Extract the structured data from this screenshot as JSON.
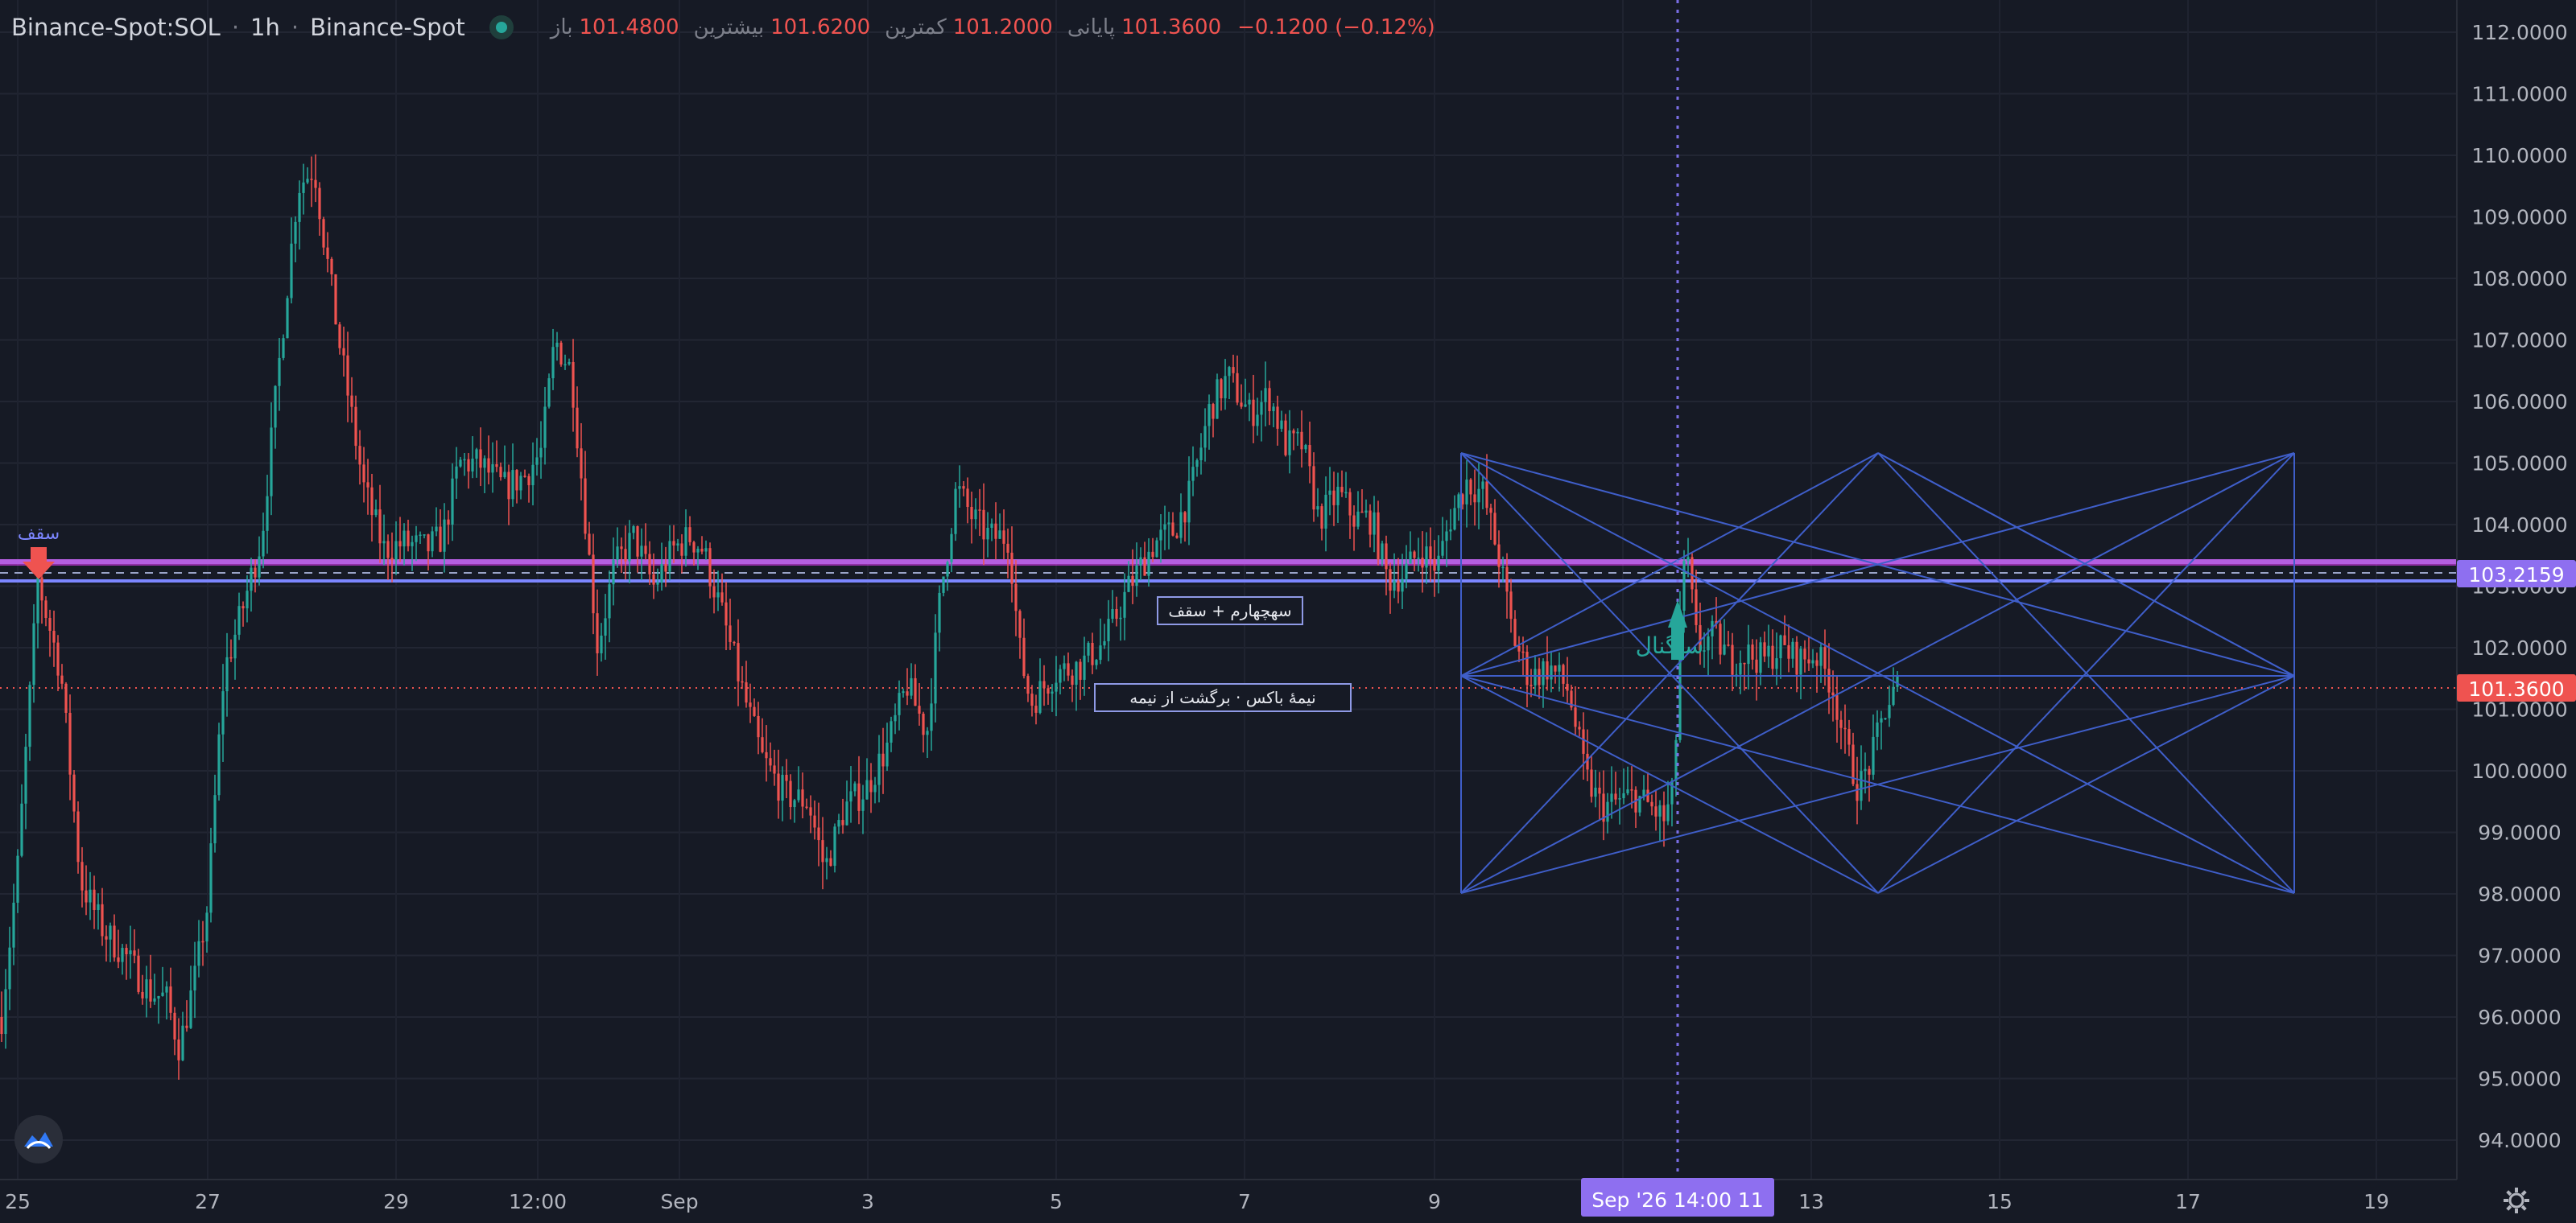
{
  "header": {
    "symbol": "Binance-Spot:SOL",
    "interval": "1h",
    "exchange": "Binance-Spot",
    "status": "market-open",
    "ohlc": {
      "open_label": "باز",
      "open": "101.4800",
      "high_label": "بیشترین",
      "high": "101.6200",
      "low_label": "کمترین",
      "low": "101.2000",
      "close_label": "پایانی",
      "close": "101.3600",
      "change": "−0.1200 (−0.12%)"
    }
  },
  "price_axis": {
    "ticks": [
      "112.0000",
      "111.0000",
      "110.0000",
      "109.0000",
      "108.0000",
      "107.0000",
      "106.0000",
      "105.0000",
      "104.0000",
      "103.0000",
      "102.0000",
      "101.0000",
      "100.0000",
      "99.0000",
      "98.0000",
      "97.0000",
      "96.0000",
      "95.0000",
      "94.0000"
    ],
    "level_label": "103.2159",
    "last_price_label": "101.3600"
  },
  "time_axis": {
    "ticks": [
      "25",
      "27",
      "29",
      "12:00",
      "Sep",
      "3",
      "5",
      "7",
      "9",
      "11",
      "13",
      "15",
      "17",
      "19"
    ],
    "crosshair_label": "Sep '26   14:00 11"
  },
  "annotations": {
    "ceiling_label": "سقف",
    "signal_label": "سیگنال",
    "box1": "سهچهارم + سقف",
    "box2": "نیمهٔ باکس · برگشت از نیمه"
  },
  "chart_data": {
    "type": "candlestick",
    "symbol": "SOL",
    "interval": "1h",
    "ylim": [
      93.5,
      112.3
    ],
    "y_ticks": [
      112,
      111,
      110,
      109,
      108,
      107,
      106,
      105,
      104,
      103,
      102,
      101,
      100,
      99,
      98,
      97,
      96,
      95,
      94
    ],
    "x_tick_labels": [
      "25",
      "27",
      "29",
      "12:00",
      "Sep",
      "3",
      "5",
      "7",
      "9",
      "11",
      "13",
      "15",
      "17",
      "19"
    ],
    "horizontal_level": 103.2159,
    "last_price": 101.36,
    "price_path": [
      [
        0,
        96.0
      ],
      [
        10,
        98.5
      ],
      [
        22,
        103.1
      ],
      [
        36,
        101.6
      ],
      [
        48,
        98.2
      ],
      [
        62,
        97.4
      ],
      [
        75,
        97.0
      ],
      [
        90,
        96.4
      ],
      [
        100,
        96.3
      ],
      [
        108,
        95.5
      ],
      [
        118,
        96.7
      ],
      [
        125,
        97.8
      ],
      [
        135,
        101.6
      ],
      [
        145,
        102.5
      ],
      [
        158,
        103.8
      ],
      [
        170,
        107.0
      ],
      [
        180,
        109.5
      ],
      [
        190,
        109.8
      ],
      [
        196,
        108.6
      ],
      [
        206,
        106.8
      ],
      [
        220,
        104.6
      ],
      [
        232,
        103.6
      ],
      [
        245,
        103.7
      ],
      [
        258,
        103.6
      ],
      [
        268,
        103.8
      ],
      [
        278,
        105.0
      ],
      [
        290,
        105.0
      ],
      [
        305,
        104.6
      ],
      [
        318,
        104.8
      ],
      [
        328,
        105.2
      ],
      [
        336,
        107.0
      ],
      [
        346,
        106.5
      ],
      [
        356,
        103.7
      ],
      [
        362,
        102.0
      ],
      [
        372,
        103.3
      ],
      [
        384,
        103.8
      ],
      [
        396,
        103.0
      ],
      [
        408,
        103.6
      ],
      [
        418,
        103.8
      ],
      [
        426,
        103.6
      ],
      [
        438,
        102.5
      ],
      [
        450,
        101.3
      ],
      [
        462,
        100.2
      ],
      [
        476,
        99.6
      ],
      [
        490,
        99.5
      ],
      [
        500,
        98.4
      ],
      [
        512,
        99.4
      ],
      [
        525,
        99.7
      ],
      [
        538,
        100.4
      ],
      [
        550,
        101.4
      ],
      [
        562,
        100.6
      ],
      [
        570,
        102.8
      ],
      [
        580,
        104.6
      ],
      [
        590,
        104.1
      ],
      [
        600,
        103.8
      ],
      [
        612,
        103.8
      ],
      [
        618,
        102.0
      ],
      [
        625,
        101.1
      ],
      [
        640,
        101.6
      ],
      [
        655,
        101.7
      ],
      [
        670,
        102.1
      ],
      [
        685,
        103.0
      ],
      [
        700,
        103.7
      ],
      [
        712,
        103.9
      ],
      [
        722,
        104.5
      ],
      [
        734,
        105.9
      ],
      [
        745,
        106.4
      ],
      [
        758,
        105.8
      ],
      [
        770,
        106.1
      ],
      [
        780,
        105.3
      ],
      [
        790,
        105.3
      ],
      [
        800,
        104.1
      ],
      [
        812,
        104.5
      ],
      [
        822,
        104.1
      ],
      [
        832,
        104.1
      ],
      [
        842,
        103.1
      ],
      [
        852,
        103.2
      ],
      [
        862,
        103.6
      ],
      [
        872,
        103.3
      ],
      [
        880,
        104.1
      ],
      [
        890,
        104.7
      ],
      [
        900,
        104.5
      ],
      [
        910,
        103.4
      ],
      [
        918,
        102.2
      ],
      [
        928,
        101.5
      ],
      [
        940,
        101.7
      ],
      [
        952,
        101.3
      ],
      [
        962,
        99.9
      ],
      [
        972,
        99.4
      ],
      [
        982,
        99.5
      ],
      [
        992,
        99.6
      ],
      [
        1002,
        99.4
      ],
      [
        1010,
        99.2
      ],
      [
        1016,
        99.7
      ],
      [
        1020,
        103.0
      ],
      [
        1024,
        103.4
      ],
      [
        1030,
        102.0
      ],
      [
        1040,
        102.2
      ],
      [
        1050,
        101.8
      ],
      [
        1060,
        101.9
      ],
      [
        1070,
        101.8
      ],
      [
        1080,
        102.0
      ],
      [
        1092,
        101.8
      ],
      [
        1102,
        101.9
      ],
      [
        1112,
        101.4
      ],
      [
        1120,
        100.4
      ],
      [
        1128,
        99.7
      ],
      [
        1136,
        100.2
      ],
      [
        1144,
        101.0
      ],
      [
        1152,
        101.4
      ]
    ]
  }
}
